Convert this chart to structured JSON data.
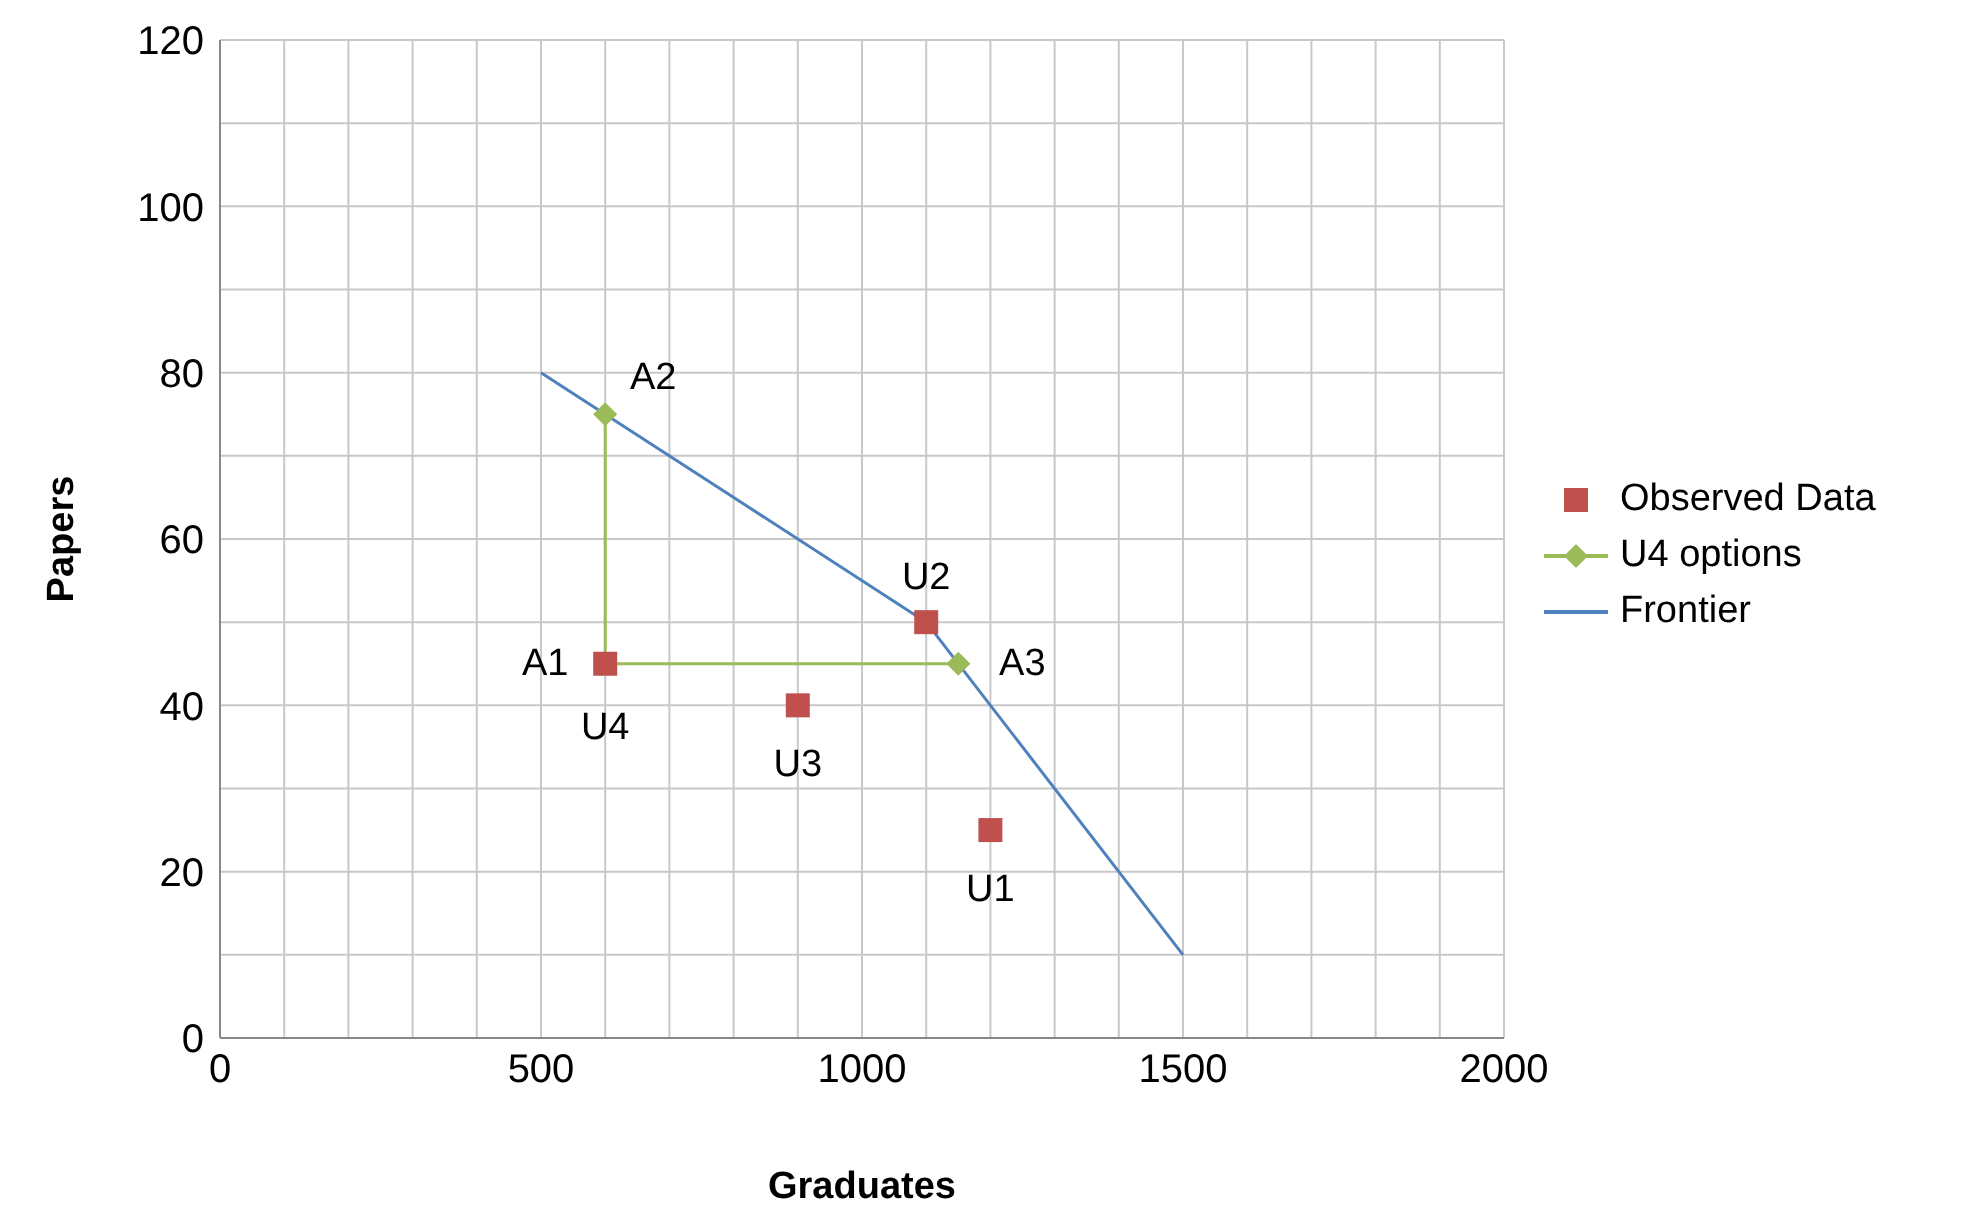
{
  "chart_data": {
    "type": "scatter",
    "xlabel": "Graduates",
    "ylabel": "Papers",
    "xlim": [
      0,
      2000
    ],
    "ylim": [
      0,
      120
    ],
    "xticks": [
      0,
      {
        "value": 100,
        "label": null
      },
      {
        "value": 200,
        "label": null
      },
      {
        "value": 300,
        "label": null
      },
      {
        "value": 400,
        "label": null
      },
      500,
      {
        "value": 600,
        "label": null
      },
      {
        "value": 700,
        "label": null
      },
      {
        "value": 800,
        "label": null
      },
      {
        "value": 900,
        "label": null
      },
      1000,
      {
        "value": 1100,
        "label": null
      },
      {
        "value": 1200,
        "label": null
      },
      {
        "value": 1300,
        "label": null
      },
      {
        "value": 1400,
        "label": null
      },
      1500,
      {
        "value": 1600,
        "label": null
      },
      {
        "value": 1700,
        "label": null
      },
      {
        "value": 1800,
        "label": null
      },
      {
        "value": 1900,
        "label": null
      },
      2000
    ],
    "yticks": [
      0,
      {
        "value": 10,
        "label": null
      },
      20,
      {
        "value": 30,
        "label": null
      },
      40,
      {
        "value": 50,
        "label": null
      },
      60,
      {
        "value": 70,
        "label": null
      },
      80,
      {
        "value": 90,
        "label": null
      },
      100,
      {
        "value": 110,
        "label": null
      },
      120
    ],
    "grid": true,
    "legend": "right",
    "series": [
      {
        "name": "Observed Data",
        "marker": "square",
        "color": "#c0504d",
        "x": [
          1200,
          1100,
          900,
          600
        ],
        "values": [
          25,
          50,
          40,
          45
        ]
      },
      {
        "name": "U4 options",
        "type": "line",
        "marker": "diamond",
        "color": "#9bbb59",
        "x": [
          600,
          600,
          1150
        ],
        "values": [
          75,
          45,
          45
        ]
      },
      {
        "name": "Frontier",
        "type": "line",
        "marker": "none",
        "color": "#4f81bd",
        "x": [
          500,
          1100,
          1500
        ],
        "values": [
          80,
          50,
          10
        ]
      }
    ],
    "annotations": [
      {
        "text": "U1",
        "x": 1200,
        "y": 25
      },
      {
        "text": "U2",
        "x": 1100,
        "y": 50
      },
      {
        "text": "U3",
        "x": 900,
        "y": 40
      },
      {
        "text": "U4",
        "x": 600,
        "y": 45
      },
      {
        "text": "A1",
        "x": 600,
        "y": 45
      },
      {
        "text": "A2",
        "x": 600,
        "y": 75
      },
      {
        "text": "A3",
        "x": 1150,
        "y": 45
      }
    ]
  }
}
